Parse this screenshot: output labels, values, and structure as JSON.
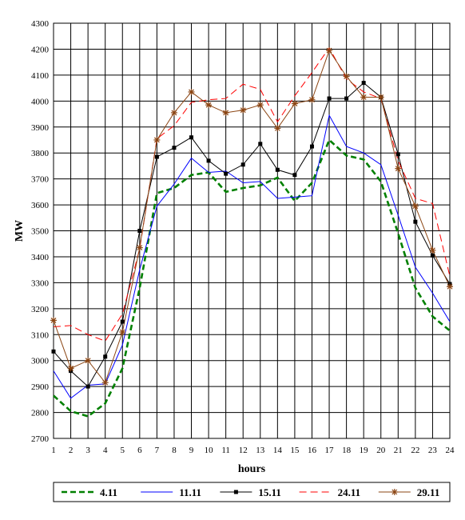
{
  "chart_data": {
    "type": "line",
    "xlabel": "hours",
    "ylabel": "MW",
    "x": [
      1,
      2,
      3,
      4,
      5,
      6,
      7,
      8,
      9,
      10,
      11,
      12,
      13,
      14,
      15,
      16,
      17,
      18,
      19,
      20,
      21,
      22,
      23,
      24
    ],
    "xlim": [
      1,
      24
    ],
    "ylim": [
      2700,
      4300
    ],
    "yticks": [
      2700,
      2800,
      2900,
      3000,
      3100,
      3200,
      3300,
      3400,
      3500,
      3600,
      3700,
      3800,
      3900,
      4000,
      4100,
      4200,
      4300
    ],
    "grid": true,
    "legend_position": "bottom",
    "series": [
      {
        "name": "4.11",
        "color": "#008000",
        "style": "dash-thick",
        "marker": "none",
        "values": [
          2865,
          2805,
          2785,
          2835,
          2970,
          3280,
          3645,
          3665,
          3715,
          3725,
          3650,
          3665,
          3675,
          3705,
          3615,
          3685,
          3850,
          3790,
          3775,
          3690,
          3490,
          3280,
          3170,
          3115
        ]
      },
      {
        "name": "11.11",
        "color": "#0000ff",
        "style": "solid",
        "marker": "none",
        "values": [
          2960,
          2855,
          2905,
          2910,
          3060,
          3350,
          3595,
          3680,
          3780,
          3725,
          3730,
          3685,
          3690,
          3625,
          3630,
          3635,
          3945,
          3825,
          3800,
          3755,
          3560,
          3360,
          3260,
          3150
        ]
      },
      {
        "name": "15.11",
        "color": "#000000",
        "style": "solid",
        "marker": "square",
        "values": [
          3035,
          2960,
          2900,
          3015,
          3150,
          3500,
          3785,
          3820,
          3860,
          3770,
          3720,
          3755,
          3835,
          3735,
          3715,
          3825,
          4010,
          4010,
          4070,
          4015,
          3795,
          3535,
          3405,
          3295
        ]
      },
      {
        "name": "24.11",
        "color": "#ff0000",
        "style": "dash",
        "marker": "none",
        "values": [
          3130,
          3135,
          3100,
          3075,
          3180,
          3430,
          3855,
          3905,
          3995,
          4005,
          4010,
          4065,
          4045,
          3920,
          4020,
          4110,
          4205,
          4085,
          4035,
          4010,
          3770,
          3625,
          3605,
          3325
        ]
      },
      {
        "name": "29.11",
        "color": "#8b4513",
        "style": "solid",
        "marker": "star",
        "values": [
          3155,
          2970,
          3000,
          2915,
          3110,
          3435,
          3850,
          3955,
          4035,
          3985,
          3955,
          3965,
          3985,
          3895,
          3990,
          4005,
          4195,
          4095,
          4015,
          4015,
          3740,
          3595,
          3425,
          3285
        ]
      }
    ]
  }
}
